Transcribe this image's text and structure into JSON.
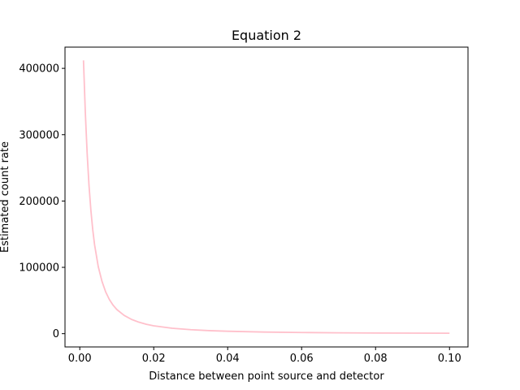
{
  "chart_data": {
    "type": "line",
    "title": "Equation 2",
    "xlabel": "Distance between point source and detector",
    "ylabel": "Estimated count rate",
    "xlim": [
      -0.004,
      0.105
    ],
    "ylim": [
      -20000,
      432000
    ],
    "x_ticks": [
      {
        "value": 0.0,
        "label": "0.00"
      },
      {
        "value": 0.02,
        "label": "0.02"
      },
      {
        "value": 0.04,
        "label": "0.04"
      },
      {
        "value": 0.06,
        "label": "0.06"
      },
      {
        "value": 0.08,
        "label": "0.08"
      },
      {
        "value": 0.1,
        "label": "0.10"
      }
    ],
    "y_ticks": [
      {
        "value": 0,
        "label": "0"
      },
      {
        "value": 100000,
        "label": "100000"
      },
      {
        "value": 200000,
        "label": "200000"
      },
      {
        "value": 300000,
        "label": "300000"
      },
      {
        "value": 400000,
        "label": "400000"
      }
    ],
    "grid": false,
    "series": [
      {
        "color": "#ffc0cb",
        "x": [
          0.001,
          0.0015,
          0.002,
          0.0025,
          0.003,
          0.0035,
          0.004,
          0.005,
          0.006,
          0.007,
          0.008,
          0.009,
          0.01,
          0.012,
          0.014,
          0.016,
          0.018,
          0.02,
          0.025,
          0.03,
          0.035,
          0.04,
          0.05,
          0.06,
          0.07,
          0.08,
          0.09,
          0.1
        ],
        "y": [
          412000,
          333000,
          271000,
          223000,
          186000,
          157000,
          134000,
          101000,
          79000,
          63000,
          51500,
          43000,
          36500,
          27500,
          21500,
          17300,
          14200,
          11900,
          8200,
          6000,
          4600,
          3650,
          2450,
          1750,
          1300,
          1000,
          800,
          650
        ]
      }
    ]
  }
}
